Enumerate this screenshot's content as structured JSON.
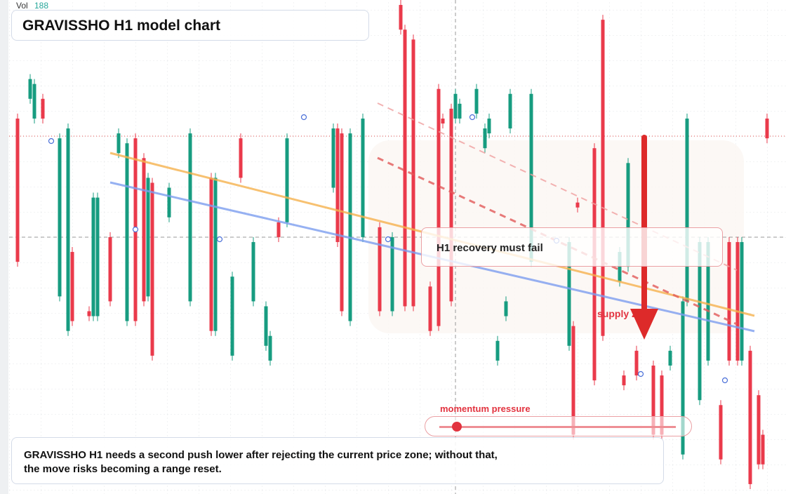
{
  "chart_data": {
    "type": "candlestick",
    "title": "GRAVISSHO H1 model chart",
    "volume_label": "Vol",
    "volume_value": 188,
    "annotation": "H1 recovery must fail",
    "zone_label": "supply zone",
    "slider_label": "momentum pressure",
    "caption_lines": [
      "GRAVISSHO H1 needs a second push lower after rejecting the current price zone; without that,",
      "the move risks becoming a range reset."
    ],
    "xlim": [
      -1,
      183.5
    ],
    "ylim": [
      0,
      100
    ],
    "up_color": "#179c80",
    "down_color": "#ea3a4b",
    "x": [
      1,
      4,
      5,
      7,
      11,
      13,
      14,
      18,
      19,
      20,
      23,
      25,
      27,
      29,
      31,
      32,
      33,
      37,
      42,
      47,
      48,
      52,
      54,
      57,
      60,
      61,
      63,
      65,
      76,
      77,
      78,
      80,
      83,
      87,
      90,
      92,
      93,
      95,
      99,
      101,
      102,
      104,
      105,
      106,
      110,
      112,
      113,
      115,
      117,
      118,
      123,
      132,
      133,
      134,
      138,
      140,
      144,
      145,
      146,
      148,
      152,
      154,
      156,
      159,
      160,
      163,
      165,
      168,
      170,
      172,
      173,
      175,
      177,
      178,
      179
    ],
    "open": [
      76,
      80,
      76,
      80,
      40,
      33,
      49,
      37,
      36,
      36,
      52,
      69,
      35,
      72,
      68,
      40,
      63,
      56,
      39,
      64,
      33,
      28,
      72,
      39,
      30,
      27,
      55,
      55,
      62,
      74,
      73,
      35,
      52,
      54,
      37,
      99,
      94,
      92,
      42,
      82,
      76,
      78,
      76,
      76,
      77,
      70,
      73,
      27,
      36,
      74,
      47,
      30,
      34,
      59,
      70,
      96,
      43,
      24,
      46,
      29,
      26,
      24,
      26,
      8,
      39,
      19,
      27,
      18,
      51,
      51,
      27,
      29,
      20,
      12,
      76
    ],
    "high": [
      77,
      85,
      84,
      81,
      73,
      75,
      50,
      38,
      61,
      61,
      53,
      74,
      72,
      73,
      69,
      65,
      64,
      63,
      74,
      65,
      65,
      45,
      73,
      52,
      39,
      33,
      56,
      73,
      75,
      75,
      74,
      74,
      77,
      55,
      53,
      100,
      95,
      93,
      43,
      83,
      77,
      79,
      82,
      80,
      83,
      75,
      77,
      32,
      40,
      82,
      82,
      52,
      35,
      60,
      71,
      97,
      50,
      25,
      68,
      30,
      27,
      25,
      30,
      40,
      77,
      52,
      52,
      19,
      52,
      52,
      52,
      30,
      21,
      13,
      77
    ],
    "low": [
      46,
      79,
      75,
      75,
      39,
      32,
      34,
      35,
      35,
      35,
      38,
      68,
      34,
      34,
      38,
      39,
      27,
      55,
      38,
      32,
      32,
      27,
      63,
      38,
      29,
      26,
      51,
      54,
      61,
      50,
      36,
      34,
      51,
      36,
      36,
      93,
      37,
      37,
      32,
      33,
      74,
      38,
      75,
      75,
      76,
      69,
      72,
      26,
      35,
      73,
      46,
      29,
      11,
      57,
      22,
      31,
      42,
      21,
      45,
      23,
      11,
      11,
      25,
      7,
      38,
      18,
      26,
      6,
      26,
      26,
      26,
      1,
      5,
      5,
      71
    ],
    "close": [
      47,
      84,
      83,
      76,
      72,
      74,
      35,
      36,
      60,
      60,
      39,
      73,
      71,
      35,
      39,
      64,
      28,
      62,
      73,
      33,
      64,
      44,
      64,
      51,
      38,
      32,
      52,
      72,
      74,
      51,
      37,
      73,
      76,
      37,
      52,
      94,
      38,
      38,
      33,
      34,
      75,
      39,
      81,
      79,
      82,
      74,
      76,
      31,
      39,
      81,
      81,
      51,
      12,
      58,
      23,
      32,
      49,
      22,
      67,
      24,
      12,
      12,
      29,
      39,
      76,
      51,
      51,
      7,
      27,
      27,
      51,
      2,
      6,
      6,
      72
    ]
  }
}
